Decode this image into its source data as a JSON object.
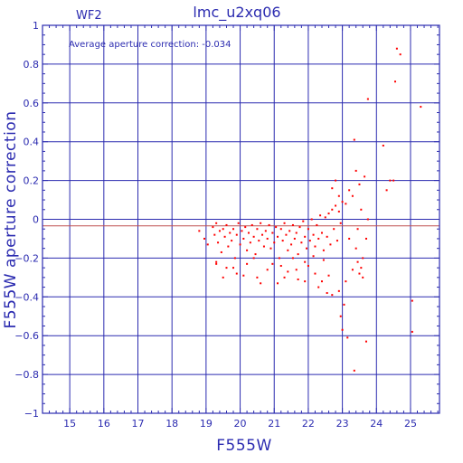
{
  "chart_data": {
    "type": "scatter",
    "title": "lmc_u2xq06",
    "panel_label": "WF2",
    "annotation": "Average aperture correction: -0.034",
    "xlabel": "F555W",
    "ylabel": "F555W aperture correction",
    "xlim": [
      14.2,
      25.85
    ],
    "ylim": [
      -1,
      1
    ],
    "x_ticks": [
      15,
      16,
      17,
      18,
      19,
      20,
      21,
      22,
      23,
      24,
      25
    ],
    "y_ticks": [
      -1,
      -0.8,
      -0.6,
      -0.4,
      -0.2,
      0,
      0.2,
      0.4,
      0.6,
      0.8,
      1
    ],
    "y_tick_labels": [
      "−1",
      "−0.8",
      "−0.6",
      "−0.4",
      "−0.2",
      "0",
      "0.2",
      "0.4",
      "0.6",
      "0.8",
      "1"
    ],
    "grid": true,
    "reference_lines": [
      0,
      -0.034
    ],
    "colors": {
      "axes": "#2b2bb0",
      "points": "#ff0000",
      "mean_line": "#c05050"
    },
    "series": [
      {
        "points": [
          [
            18.8,
            -0.06
          ],
          [
            18.95,
            -0.1
          ],
          [
            19.05,
            -0.13
          ],
          [
            19.2,
            -0.04
          ],
          [
            19.25,
            -0.08
          ],
          [
            19.3,
            -0.02
          ],
          [
            19.35,
            -0.12
          ],
          [
            19.4,
            -0.06
          ],
          [
            19.45,
            -0.17
          ],
          [
            19.5,
            -0.05
          ],
          [
            19.55,
            -0.09
          ],
          [
            19.6,
            -0.03
          ],
          [
            19.65,
            -0.14
          ],
          [
            19.7,
            -0.07
          ],
          [
            19.75,
            -0.11
          ],
          [
            19.8,
            -0.05
          ],
          [
            19.85,
            -0.2
          ],
          [
            19.9,
            -0.08
          ],
          [
            19.95,
            -0.02
          ],
          [
            20.0,
            -0.13
          ],
          [
            20.05,
            -0.06
          ],
          [
            20.1,
            -0.1
          ],
          [
            20.15,
            -0.04
          ],
          [
            20.2,
            -0.16
          ],
          [
            20.25,
            -0.07
          ],
          [
            20.3,
            -0.12
          ],
          [
            20.35,
            -0.03
          ],
          [
            20.4,
            -0.09
          ],
          [
            20.45,
            -0.18
          ],
          [
            20.5,
            -0.05
          ],
          [
            20.55,
            -0.11
          ],
          [
            20.6,
            -0.02
          ],
          [
            20.65,
            -0.08
          ],
          [
            20.7,
            -0.14
          ],
          [
            20.75,
            -0.06
          ],
          [
            20.8,
            -0.1
          ],
          [
            20.85,
            -0.03
          ],
          [
            20.9,
            -0.15
          ],
          [
            20.95,
            -0.07
          ],
          [
            21.0,
            -0.12
          ],
          [
            21.05,
            -0.04
          ],
          [
            21.1,
            -0.09
          ],
          [
            21.15,
            -0.2
          ],
          [
            21.2,
            -0.05
          ],
          [
            21.25,
            -0.11
          ],
          [
            21.3,
            -0.02
          ],
          [
            21.35,
            -0.08
          ],
          [
            21.4,
            -0.16
          ],
          [
            21.45,
            -0.06
          ],
          [
            21.5,
            -0.13
          ],
          [
            21.55,
            -0.03
          ],
          [
            21.6,
            -0.1
          ],
          [
            21.65,
            -0.07
          ],
          [
            21.7,
            -0.18
          ],
          [
            21.75,
            -0.04
          ],
          [
            21.8,
            -0.12
          ],
          [
            21.85,
            -0.01
          ],
          [
            21.9,
            -0.09
          ],
          [
            21.95,
            -0.15
          ],
          [
            22.0,
            -0.05
          ],
          [
            22.05,
            -0.11
          ],
          [
            22.1,
            0.0
          ],
          [
            22.15,
            -0.08
          ],
          [
            22.2,
            -0.14
          ],
          [
            22.25,
            -0.03
          ],
          [
            22.3,
            -0.1
          ],
          [
            22.35,
            0.02
          ],
          [
            22.4,
            -0.07
          ],
          [
            22.45,
            -0.16
          ],
          [
            22.5,
            0.01
          ],
          [
            22.55,
            -0.09
          ],
          [
            22.6,
            0.03
          ],
          [
            22.65,
            -0.13
          ],
          [
            22.7,
            0.05
          ],
          [
            22.75,
            -0.05
          ],
          [
            22.8,
            0.07
          ],
          [
            22.85,
            -0.11
          ],
          [
            22.9,
            0.04
          ],
          [
            22.95,
            -0.02
          ],
          [
            23.0,
            0.09
          ],
          [
            19.3,
            -0.22
          ],
          [
            19.6,
            -0.25
          ],
          [
            19.9,
            -0.28
          ],
          [
            20.2,
            -0.23
          ],
          [
            20.5,
            -0.3
          ],
          [
            20.8,
            -0.26
          ],
          [
            21.1,
            -0.33
          ],
          [
            21.4,
            -0.27
          ],
          [
            21.7,
            -0.31
          ],
          [
            22.0,
            -0.24
          ],
          [
            22.3,
            -0.35
          ],
          [
            22.6,
            -0.29
          ],
          [
            22.9,
            -0.37
          ],
          [
            23.1,
            -0.32
          ],
          [
            23.3,
            -0.26
          ],
          [
            23.5,
            -0.28
          ],
          [
            23.6,
            -0.2
          ],
          [
            23.4,
            -0.15
          ],
          [
            23.2,
            -0.1
          ],
          [
            23.45,
            -0.05
          ],
          [
            23.55,
            0.05
          ],
          [
            23.3,
            0.12
          ],
          [
            23.5,
            0.18
          ],
          [
            23.65,
            0.22
          ],
          [
            23.2,
            0.15
          ],
          [
            23.4,
            0.25
          ],
          [
            23.1,
            0.08
          ],
          [
            22.9,
            0.12
          ],
          [
            22.7,
            0.16
          ],
          [
            22.8,
            0.2
          ],
          [
            23.7,
            -0.1
          ],
          [
            23.75,
            0.0
          ],
          [
            23.35,
            0.41
          ],
          [
            23.75,
            0.62
          ],
          [
            24.2,
            0.38
          ],
          [
            24.4,
            0.2
          ],
          [
            24.3,
            0.15
          ],
          [
            24.55,
            0.71
          ],
          [
            24.6,
            0.88
          ],
          [
            24.7,
            0.85
          ],
          [
            24.5,
            0.2
          ],
          [
            25.3,
            0.58
          ],
          [
            25.05,
            -0.42
          ],
          [
            25.05,
            -0.58
          ],
          [
            23.35,
            -0.78
          ],
          [
            23.7,
            -0.63
          ],
          [
            23.15,
            -0.61
          ],
          [
            23.0,
            -0.57
          ],
          [
            22.95,
            -0.5
          ],
          [
            23.05,
            -0.44
          ],
          [
            22.55,
            -0.38
          ],
          [
            22.7,
            -0.39
          ],
          [
            22.4,
            -0.32
          ],
          [
            21.9,
            -0.32
          ],
          [
            21.3,
            -0.3
          ],
          [
            20.6,
            -0.33
          ],
          [
            20.1,
            -0.29
          ],
          [
            19.8,
            -0.25
          ],
          [
            19.5,
            -0.3
          ],
          [
            19.3,
            -0.23
          ],
          [
            23.45,
            -0.22
          ],
          [
            23.55,
            -0.25
          ],
          [
            23.6,
            -0.3
          ],
          [
            22.2,
            -0.28
          ],
          [
            21.55,
            -0.2
          ],
          [
            21.9,
            -0.22
          ],
          [
            22.45,
            -0.21
          ],
          [
            20.4,
            -0.2
          ],
          [
            20.95,
            -0.23
          ],
          [
            21.2,
            -0.24
          ],
          [
            21.65,
            -0.26
          ],
          [
            22.15,
            -0.19
          ]
        ]
      }
    ]
  }
}
